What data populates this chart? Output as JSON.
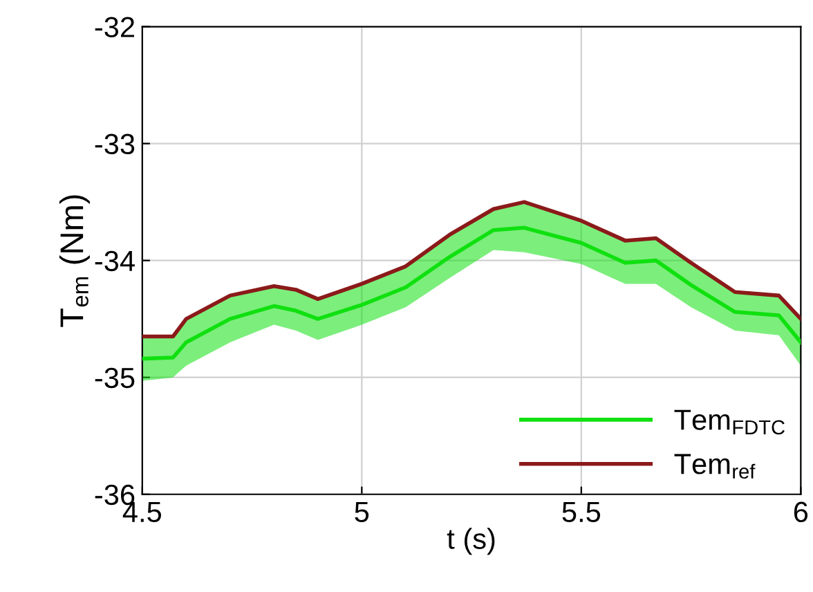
{
  "chart_data": {
    "type": "line",
    "xlabel": "t (s)",
    "ylabel": "T$_{em}$ (Nm)",
    "x": [
      4.5,
      4.57,
      4.6,
      4.7,
      4.8,
      4.85,
      4.9,
      5.0,
      5.1,
      5.2,
      5.3,
      5.37,
      5.5,
      5.6,
      5.67,
      5.75,
      5.85,
      5.95,
      6.0
    ],
    "series": [
      {
        "name": "Tem$_{FDTC}$",
        "color": "#10e010",
        "values": [
          -34.84,
          -34.83,
          -34.7,
          -34.5,
          -34.39,
          -34.43,
          -34.5,
          -34.38,
          -34.23,
          -33.97,
          -33.74,
          -33.72,
          -33.85,
          -34.02,
          -34.0,
          -34.21,
          -34.44,
          -34.47,
          -34.7
        ],
        "lower": [
          -35.03,
          -35.0,
          -34.9,
          -34.7,
          -34.55,
          -34.6,
          -34.68,
          -34.55,
          -34.4,
          -34.15,
          -33.91,
          -33.93,
          -34.03,
          -34.2,
          -34.2,
          -34.4,
          -34.6,
          -34.64,
          -34.9
        ],
        "upper": [
          -34.65,
          -34.65,
          -34.5,
          -34.3,
          -34.22,
          -34.25,
          -34.33,
          -34.2,
          -34.05,
          -33.78,
          -33.56,
          -33.5,
          -33.66,
          -33.83,
          -33.81,
          -34.02,
          -34.27,
          -34.3,
          -34.5
        ]
      },
      {
        "name": "Tem$_{ref}$",
        "color": "#8b1a1a",
        "values": [
          -34.65,
          -34.65,
          -34.5,
          -34.3,
          -34.22,
          -34.25,
          -34.33,
          -34.2,
          -34.05,
          -33.78,
          -33.56,
          -33.5,
          -33.66,
          -33.83,
          -33.81,
          -34.02,
          -34.27,
          -34.3,
          -34.5
        ]
      }
    ],
    "xlim": [
      4.5,
      6
    ],
    "xticks": [
      4.5,
      5,
      5.5,
      6
    ],
    "ylim": [
      -36,
      -32
    ],
    "yticks": [
      -36,
      -35,
      -34,
      -33,
      -32
    ],
    "grid": true,
    "legend": "bottom right",
    "line_style": "solid",
    "marker": "none"
  }
}
